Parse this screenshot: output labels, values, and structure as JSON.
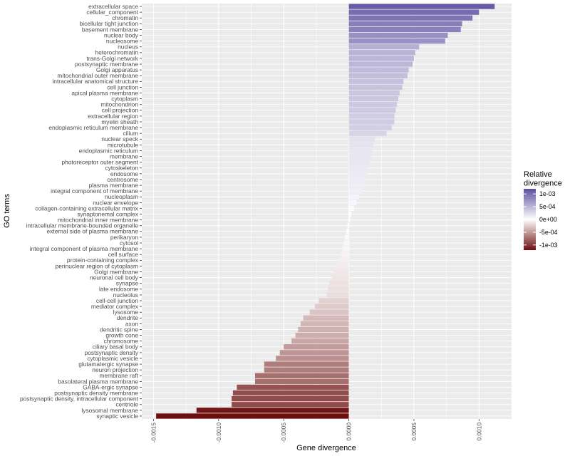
{
  "chart_data": {
    "type": "bar",
    "orientation": "horizontal",
    "xlabel": "Gene divergence",
    "ylabel": "GO terms",
    "xlim": [
      -0.00159,
      0.00125
    ],
    "x_ticks": [
      -0.0015,
      -0.001,
      -0.0005,
      0.0,
      0.0005,
      0.001
    ],
    "x_tick_labels": [
      "-0.0015",
      "-0.0010",
      "-0.0005",
      "0.0000",
      "0.0005",
      "0.0010"
    ],
    "grid": true,
    "legend": {
      "title": "Relative\ndivergence",
      "position": "right",
      "limits": [
        -0.0012,
        0.0012
      ],
      "breaks": [
        0.001,
        0.0005,
        0.0,
        -0.0005,
        -0.001
      ],
      "labels": [
        "1e-03",
        "5e-04",
        "0e+00",
        "-5e-04",
        "-1e-03"
      ],
      "colors": {
        "high": "#5b4fa0",
        "mid": "#ffffff",
        "low": "#6e0f0f"
      }
    },
    "categories": [
      "extracellular space",
      "cellular_component",
      "chromatin",
      "bicellular tight junction",
      "basement membrane",
      "nuclear body",
      "nucleosome",
      "nucleus",
      "heterochromatin",
      "trans-Golgi network",
      "postsynaptic membrane",
      "Golgi apparatus",
      "mitochondrial outer membrane",
      "intracellular anatomical structure",
      "cell junction",
      "apical plasma membrane",
      "cytoplasm",
      "mitochondrion",
      "cell projection",
      "extracellular region",
      "myelin sheath",
      "endoplasmic reticulum membrane",
      "cilium",
      "nuclear speck",
      "microtubule",
      "endoplasmic reticulum",
      "membrane",
      "photoreceptor outer segment",
      "cytoskeleton",
      "endosome",
      "centrosome",
      "plasma membrane",
      "integral component of membrane",
      "nucleoplasm",
      "nuclear envelope",
      "collagen-containing extracellular matrix",
      "synaptonemal complex",
      "mitochondrial inner membrane",
      "intracellular membrane-bounded organelle",
      "external side of plasma membrane",
      "perikaryon",
      "cytosol",
      "integral component of plasma membrane",
      "cell surface",
      "protein-containing complex",
      "perinuclear region of cytoplasm",
      "Golgi membrane",
      "neuronal cell body",
      "synapse",
      "late endosome",
      "nucleolus",
      "cell-cell junction",
      "mediator complex",
      "lysosome",
      "dendrite",
      "axon",
      "dendritic spine",
      "growth cone",
      "chromosome",
      "ciliary basal body",
      "postsynaptic density",
      "cytoplasmic vesicle",
      "glutamatergic synapse",
      "neuron projection",
      "membrane raft",
      "basolateral plasma membrane",
      "GABA-ergic synapse",
      "postsynaptic density membrane",
      "postsynaptic density, intracellular component",
      "centriole",
      "lysosomal membrane",
      "synaptic vesicle"
    ],
    "values": [
      0.00112,
      0.001,
      0.00095,
      0.00087,
      0.00086,
      0.00076,
      0.00074,
      0.00054,
      0.00051,
      0.0005,
      0.00049,
      0.00046,
      0.00045,
      0.00042,
      0.00041,
      0.00039,
      0.00038,
      0.00037,
      0.00036,
      0.00035,
      0.00035,
      0.00033,
      0.00029,
      0.0002,
      0.00019,
      0.00018,
      0.00017,
      0.00016,
      0.00015,
      0.00014,
      0.00013,
      0.00012,
      0.0001,
      8e-05,
      6e-05,
      4e-05,
      2e-05,
      1e-05,
      -1e-05,
      -2e-05,
      -3e-05,
      -4e-05,
      -5e-05,
      -6e-05,
      -8e-05,
      -0.0001,
      -0.00012,
      -0.00013,
      -0.00015,
      -0.00016,
      -0.00017,
      -0.00023,
      -0.00026,
      -0.0003,
      -0.00035,
      -0.00037,
      -0.00039,
      -0.00041,
      -0.00044,
      -0.0005,
      -0.00053,
      -0.00056,
      -0.00065,
      -0.00065,
      -0.00072,
      -0.00072,
      -0.00086,
      -0.00089,
      -0.0009,
      -0.0009,
      -0.00117,
      -0.00148
    ]
  }
}
